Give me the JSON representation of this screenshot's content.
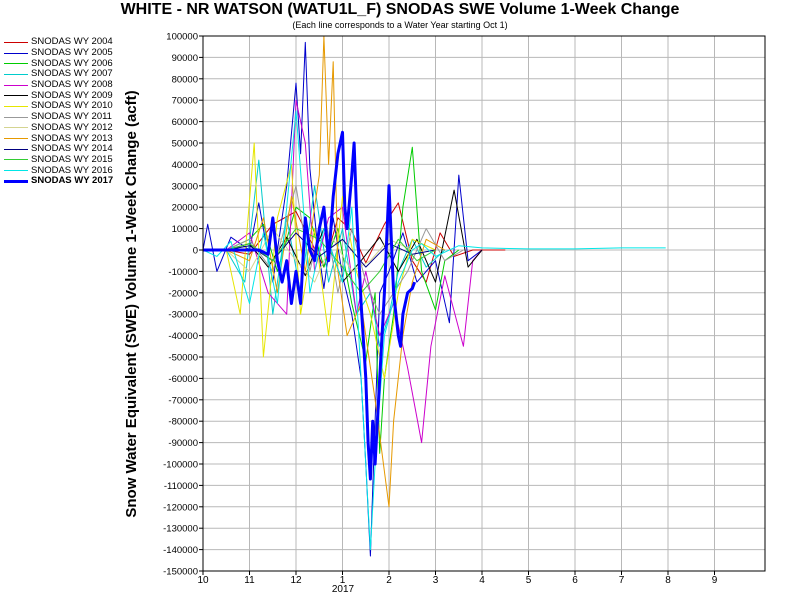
{
  "chart_data": {
    "type": "line",
    "title": "WHITE - NR WATSON (WATU1L_F) SNODAS SWE Volume 1-Week Change",
    "subtitle": "(Each line corresponds to a Water Year starting Oct 1)",
    "ylabel": "Snow Water Equivalent (SWE) Volume 1-Week Change (acft)",
    "xlabel": "",
    "x_ticks": [
      "10",
      "11",
      "12",
      "1",
      "2",
      "3",
      "4",
      "5",
      "6",
      "7",
      "8",
      "9"
    ],
    "x_year_label": "2017",
    "ylim": [
      -150000,
      100000
    ],
    "y_step": 10000,
    "grid": true,
    "legend_position": "left",
    "series": [
      {
        "name": "SNODAS WY 2004",
        "color": "#cc0000",
        "width": 1,
        "points": [
          [
            0.0,
            0
          ],
          [
            0.5,
            0
          ],
          [
            1.0,
            -2000
          ],
          [
            1.5,
            12000
          ],
          [
            2.0,
            18000
          ],
          [
            2.3,
            5000
          ],
          [
            2.6,
            -8000
          ],
          [
            2.9,
            15000
          ],
          [
            3.2,
            9000
          ],
          [
            3.5,
            -6000
          ],
          [
            3.9,
            12000
          ],
          [
            4.2,
            22000
          ],
          [
            4.5,
            -5000
          ],
          [
            4.8,
            -15000
          ],
          [
            5.1,
            8000
          ],
          [
            5.4,
            -3000
          ],
          [
            5.8,
            0
          ],
          [
            6.5,
            0
          ]
        ]
      },
      {
        "name": "SNODAS WY 2005",
        "color": "#0000cc",
        "width": 1,
        "points": [
          [
            0.0,
            0
          ],
          [
            0.1,
            12000
          ],
          [
            0.3,
            -10000
          ],
          [
            0.6,
            6000
          ],
          [
            1.0,
            0
          ],
          [
            1.2,
            22000
          ],
          [
            1.5,
            -15000
          ],
          [
            1.8,
            30000
          ],
          [
            2.0,
            78000
          ],
          [
            2.1,
            45000
          ],
          [
            2.2,
            97000
          ],
          [
            2.3,
            38000
          ],
          [
            2.45,
            5000
          ],
          [
            2.6,
            -18000
          ],
          [
            2.8,
            15000
          ],
          [
            3.0,
            -12000
          ],
          [
            3.2,
            -30000
          ],
          [
            3.4,
            -60000
          ],
          [
            3.5,
            -100000
          ],
          [
            3.6,
            -143000
          ],
          [
            3.7,
            -80000
          ],
          [
            3.8,
            -20000
          ],
          [
            4.0,
            -10000
          ],
          [
            4.3,
            8000
          ],
          [
            4.6,
            -15000
          ],
          [
            5.0,
            -5000
          ],
          [
            5.3,
            -34000
          ],
          [
            5.5,
            35000
          ],
          [
            5.7,
            -5000
          ],
          [
            6.0,
            0
          ]
        ]
      },
      {
        "name": "SNODAS WY 2006",
        "color": "#00cc00",
        "width": 1,
        "points": [
          [
            0.0,
            0
          ],
          [
            0.5,
            0
          ],
          [
            1.0,
            5000
          ],
          [
            1.3,
            12000
          ],
          [
            1.6,
            -10000
          ],
          [
            2.0,
            20000
          ],
          [
            2.3,
            15000
          ],
          [
            2.6,
            -8000
          ],
          [
            2.9,
            10000
          ],
          [
            3.2,
            -25000
          ],
          [
            3.5,
            -52000
          ],
          [
            3.7,
            -20000
          ],
          [
            3.8,
            -95000
          ],
          [
            3.9,
            -60000
          ],
          [
            4.1,
            -30000
          ],
          [
            4.3,
            20000
          ],
          [
            4.5,
            48000
          ],
          [
            4.7,
            -10000
          ],
          [
            5.0,
            -28000
          ],
          [
            5.2,
            -5000
          ],
          [
            5.5,
            0
          ]
        ]
      },
      {
        "name": "SNODAS WY 2007",
        "color": "#00cccc",
        "width": 1,
        "points": [
          [
            0.0,
            0
          ],
          [
            0.5,
            0
          ],
          [
            0.9,
            -15000
          ],
          [
            1.2,
            42000
          ],
          [
            1.5,
            -30000
          ],
          [
            1.8,
            15000
          ],
          [
            2.1,
            -20000
          ],
          [
            2.4,
            30000
          ],
          [
            2.7,
            -15000
          ],
          [
            3.0,
            10000
          ],
          [
            3.3,
            -30000
          ],
          [
            3.6,
            -20000
          ],
          [
            3.8,
            -45000
          ],
          [
            4.0,
            -30000
          ],
          [
            4.2,
            -10000
          ],
          [
            4.5,
            5000
          ],
          [
            4.8,
            -8000
          ],
          [
            5.2,
            0
          ]
        ]
      },
      {
        "name": "SNODAS WY 2008",
        "color": "#cc00cc",
        "width": 1,
        "points": [
          [
            0.0,
            0
          ],
          [
            0.5,
            0
          ],
          [
            1.0,
            8000
          ],
          [
            1.4,
            -20000
          ],
          [
            1.8,
            -30000
          ],
          [
            2.0,
            70000
          ],
          [
            2.2,
            50000
          ],
          [
            2.4,
            -10000
          ],
          [
            2.7,
            15000
          ],
          [
            3.0,
            20000
          ],
          [
            3.3,
            -30000
          ],
          [
            3.5,
            -10000
          ],
          [
            3.8,
            -40000
          ],
          [
            4.1,
            -25000
          ],
          [
            4.4,
            -55000
          ],
          [
            4.7,
            -90000
          ],
          [
            4.9,
            -45000
          ],
          [
            5.2,
            -12000
          ],
          [
            5.6,
            -45000
          ],
          [
            5.8,
            -5000
          ],
          [
            6.0,
            0
          ]
        ]
      },
      {
        "name": "SNODAS WY 2009",
        "color": "#000000",
        "width": 1,
        "points": [
          [
            0.0,
            0
          ],
          [
            0.5,
            0
          ],
          [
            1.0,
            3000
          ],
          [
            1.4,
            -8000
          ],
          [
            1.8,
            6000
          ],
          [
            2.2,
            -12000
          ],
          [
            2.6,
            10000
          ],
          [
            3.0,
            -15000
          ],
          [
            3.4,
            -5000
          ],
          [
            3.8,
            6000
          ],
          [
            4.2,
            -10000
          ],
          [
            4.6,
            5000
          ],
          [
            5.0,
            -15000
          ],
          [
            5.4,
            28000
          ],
          [
            5.7,
            -8000
          ],
          [
            6.0,
            0
          ]
        ]
      },
      {
        "name": "SNODAS WY 2010",
        "color": "#e6e600",
        "width": 1,
        "points": [
          [
            0.0,
            0
          ],
          [
            0.5,
            0
          ],
          [
            0.8,
            -30000
          ],
          [
            1.1,
            50000
          ],
          [
            1.3,
            -50000
          ],
          [
            1.6,
            15000
          ],
          [
            1.9,
            40000
          ],
          [
            2.1,
            -30000
          ],
          [
            2.4,
            10000
          ],
          [
            2.7,
            -40000
          ],
          [
            3.0,
            25000
          ],
          [
            3.3,
            -10000
          ],
          [
            3.6,
            -30000
          ],
          [
            3.9,
            -60000
          ],
          [
            4.2,
            -20000
          ],
          [
            4.5,
            5000
          ],
          [
            5.0,
            0
          ]
        ]
      },
      {
        "name": "SNODAS WY 2011",
        "color": "#999999",
        "width": 1,
        "points": [
          [
            0.0,
            0
          ],
          [
            0.5,
            0
          ],
          [
            1.0,
            5000
          ],
          [
            1.5,
            -10000
          ],
          [
            2.0,
            30000
          ],
          [
            2.3,
            -10000
          ],
          [
            2.6,
            20000
          ],
          [
            2.9,
            -20000
          ],
          [
            3.2,
            10000
          ],
          [
            3.5,
            -15000
          ],
          [
            3.8,
            -30000
          ],
          [
            4.1,
            -20000
          ],
          [
            4.4,
            -10000
          ],
          [
            4.8,
            10000
          ],
          [
            5.2,
            -5000
          ],
          [
            5.6,
            0
          ]
        ]
      },
      {
        "name": "SNODAS WY 2012",
        "color": "#d4d490",
        "width": 1,
        "points": [
          [
            0.0,
            0
          ],
          [
            0.5,
            0
          ],
          [
            1.0,
            -10000
          ],
          [
            1.5,
            10000
          ],
          [
            2.0,
            -5000
          ],
          [
            2.4,
            -15000
          ],
          [
            2.8,
            5000
          ],
          [
            3.2,
            -10000
          ],
          [
            3.6,
            -5000
          ],
          [
            4.0,
            5000
          ],
          [
            4.5,
            0
          ]
        ]
      },
      {
        "name": "SNODAS WY 2013",
        "color": "#e69900",
        "width": 1,
        "points": [
          [
            0.0,
            0
          ],
          [
            0.5,
            0
          ],
          [
            1.0,
            -5000
          ],
          [
            1.3,
            15000
          ],
          [
            1.6,
            -20000
          ],
          [
            1.9,
            25000
          ],
          [
            2.2,
            -10000
          ],
          [
            2.5,
            35000
          ],
          [
            2.6,
            100000
          ],
          [
            2.7,
            40000
          ],
          [
            2.8,
            88000
          ],
          [
            2.9,
            -10000
          ],
          [
            3.1,
            -40000
          ],
          [
            3.4,
            -25000
          ],
          [
            3.7,
            -70000
          ],
          [
            4.0,
            -120000
          ],
          [
            4.1,
            -80000
          ],
          [
            4.3,
            -40000
          ],
          [
            4.5,
            -15000
          ],
          [
            4.8,
            5000
          ],
          [
            5.2,
            0
          ]
        ]
      },
      {
        "name": "SNODAS WY 2014",
        "color": "#000080",
        "width": 1,
        "points": [
          [
            0.0,
            0
          ],
          [
            0.5,
            0
          ],
          [
            1.0,
            2000
          ],
          [
            1.5,
            -5000
          ],
          [
            2.0,
            8000
          ],
          [
            2.5,
            -3000
          ],
          [
            3.0,
            5000
          ],
          [
            3.5,
            -8000
          ],
          [
            4.0,
            3000
          ],
          [
            4.5,
            -2000
          ],
          [
            5.0,
            0
          ]
        ]
      },
      {
        "name": "SNODAS WY 2015",
        "color": "#33cc33",
        "width": 1,
        "points": [
          [
            0.0,
            0
          ],
          [
            0.5,
            0
          ],
          [
            1.0,
            3000
          ],
          [
            1.5,
            -5000
          ],
          [
            2.0,
            10000
          ],
          [
            2.5,
            5000
          ],
          [
            3.0,
            -8000
          ],
          [
            3.4,
            -20000
          ],
          [
            3.8,
            -10000
          ],
          [
            4.2,
            5000
          ],
          [
            4.6,
            -5000
          ],
          [
            5.0,
            0
          ]
        ]
      },
      {
        "name": "SNODAS WY 2016",
        "color": "#00e6e6",
        "width": 1,
        "points": [
          [
            0.0,
            0
          ],
          [
            0.3,
            -3000
          ],
          [
            0.6,
            4000
          ],
          [
            1.0,
            -25000
          ],
          [
            1.3,
            8000
          ],
          [
            1.6,
            -25000
          ],
          [
            2.0,
            65000
          ],
          [
            2.3,
            -20000
          ],
          [
            2.6,
            10000
          ],
          [
            3.0,
            -15000
          ],
          [
            3.2,
            20000
          ],
          [
            3.4,
            -60000
          ],
          [
            3.6,
            -140000
          ],
          [
            3.7,
            -100000
          ],
          [
            3.9,
            -40000
          ],
          [
            4.2,
            -15000
          ],
          [
            4.5,
            0
          ],
          [
            4.7,
            3000
          ],
          [
            5.0,
            -3000
          ],
          [
            5.5,
            2000
          ],
          [
            6.0,
            1000
          ],
          [
            7.0,
            500
          ],
          [
            8.0,
            500
          ],
          [
            9.0,
            1000
          ],
          [
            9.95,
            1000
          ]
        ]
      },
      {
        "name": "SNODAS WY 2017",
        "color": "#0000ff",
        "width": 3,
        "points": [
          [
            0.0,
            0
          ],
          [
            0.3,
            0
          ],
          [
            0.6,
            0
          ],
          [
            0.9,
            0
          ],
          [
            1.2,
            0
          ],
          [
            1.4,
            -2000
          ],
          [
            1.5,
            15000
          ],
          [
            1.6,
            -5000
          ],
          [
            1.7,
            -15000
          ],
          [
            1.8,
            -5000
          ],
          [
            1.9,
            -25000
          ],
          [
            2.0,
            -10000
          ],
          [
            2.1,
            -25000
          ],
          [
            2.2,
            15000
          ],
          [
            2.3,
            0
          ],
          [
            2.4,
            -5000
          ],
          [
            2.5,
            10000
          ],
          [
            2.6,
            20000
          ],
          [
            2.7,
            -5000
          ],
          [
            2.8,
            25000
          ],
          [
            2.9,
            45000
          ],
          [
            3.0,
            55000
          ],
          [
            3.05,
            20000
          ],
          [
            3.1,
            10000
          ],
          [
            3.2,
            35000
          ],
          [
            3.25,
            50000
          ],
          [
            3.3,
            20000
          ],
          [
            3.4,
            -25000
          ],
          [
            3.5,
            -60000
          ],
          [
            3.55,
            -90000
          ],
          [
            3.6,
            -107000
          ],
          [
            3.65,
            -80000
          ],
          [
            3.7,
            -100000
          ],
          [
            3.8,
            -60000
          ],
          [
            3.9,
            -20000
          ],
          [
            4.0,
            30000
          ],
          [
            4.05,
            5000
          ],
          [
            4.1,
            -20000
          ],
          [
            4.2,
            -40000
          ],
          [
            4.25,
            -45000
          ],
          [
            4.3,
            -30000
          ],
          [
            4.4,
            -20000
          ],
          [
            4.5,
            -18000
          ],
          [
            4.55,
            -15000
          ]
        ]
      }
    ]
  }
}
